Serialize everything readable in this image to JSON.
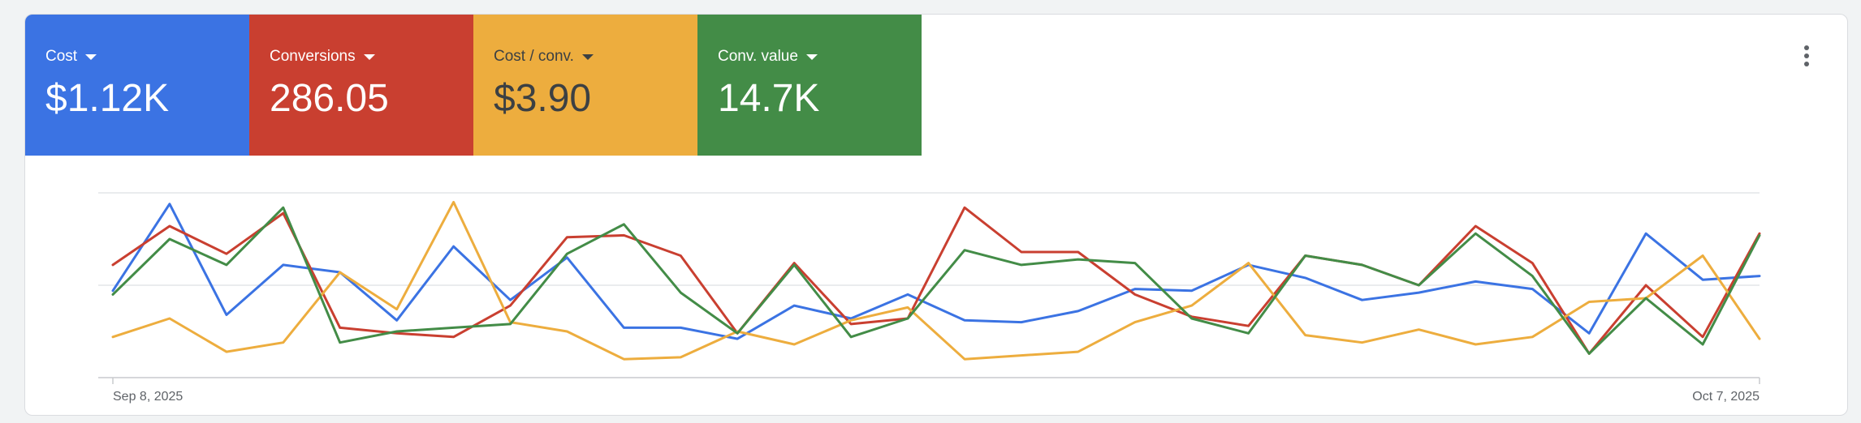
{
  "metrics": [
    {
      "label": "Cost",
      "value": "$1.12K",
      "color": "#3b73e3",
      "icon": "caret-down-icon"
    },
    {
      "label": "Conversions",
      "value": "286.05",
      "color": "#c93f30",
      "icon": "caret-down-icon"
    },
    {
      "label": "Cost / conv.",
      "value": "$3.90",
      "color": "#edad3e",
      "icon": "caret-down-icon"
    },
    {
      "label": "Conv. value",
      "value": "14.7K",
      "color": "#438c47",
      "icon": "caret-down-icon"
    }
  ],
  "menu_icon": "more-vert-icon",
  "chart_data": {
    "type": "line",
    "x_tick_labels": [
      "Sep 8, 2025",
      "Oct 7, 2025"
    ],
    "x_ticks": [
      0,
      29
    ],
    "ylim": [
      0,
      100
    ],
    "grid": true,
    "legend": "none",
    "series": [
      {
        "name": "Cost",
        "color": "#3b73e3",
        "values": [
          47,
          94,
          34,
          61,
          57,
          31,
          71,
          42,
          65,
          27,
          27,
          21,
          39,
          32,
          45,
          31,
          30,
          36,
          48,
          47,
          61,
          54,
          42,
          46,
          52,
          48,
          24,
          78,
          53,
          55
        ]
      },
      {
        "name": "Conversions",
        "color": "#c93f30",
        "values": [
          61,
          82,
          67,
          89,
          27,
          24,
          22,
          39,
          76,
          77,
          66,
          24,
          62,
          29,
          32,
          92,
          68,
          68,
          45,
          33,
          28,
          66,
          61,
          50,
          82,
          62,
          13,
          50,
          22,
          78
        ]
      },
      {
        "name": "Cost / conv.",
        "color": "#edad3e",
        "values": [
          22,
          32,
          14,
          19,
          57,
          37,
          95,
          30,
          25,
          10,
          11,
          25,
          18,
          31,
          38,
          10,
          12,
          14,
          30,
          39,
          62,
          23,
          19,
          26,
          18,
          22,
          41,
          43,
          66,
          21
        ]
      },
      {
        "name": "Conv. value",
        "color": "#438c47",
        "values": [
          45,
          75,
          61,
          92,
          19,
          25,
          27,
          29,
          67,
          83,
          46,
          24,
          61,
          22,
          32,
          69,
          61,
          64,
          62,
          32,
          24,
          66,
          61,
          50,
          78,
          55,
          13,
          43,
          18,
          77
        ]
      }
    ]
  }
}
